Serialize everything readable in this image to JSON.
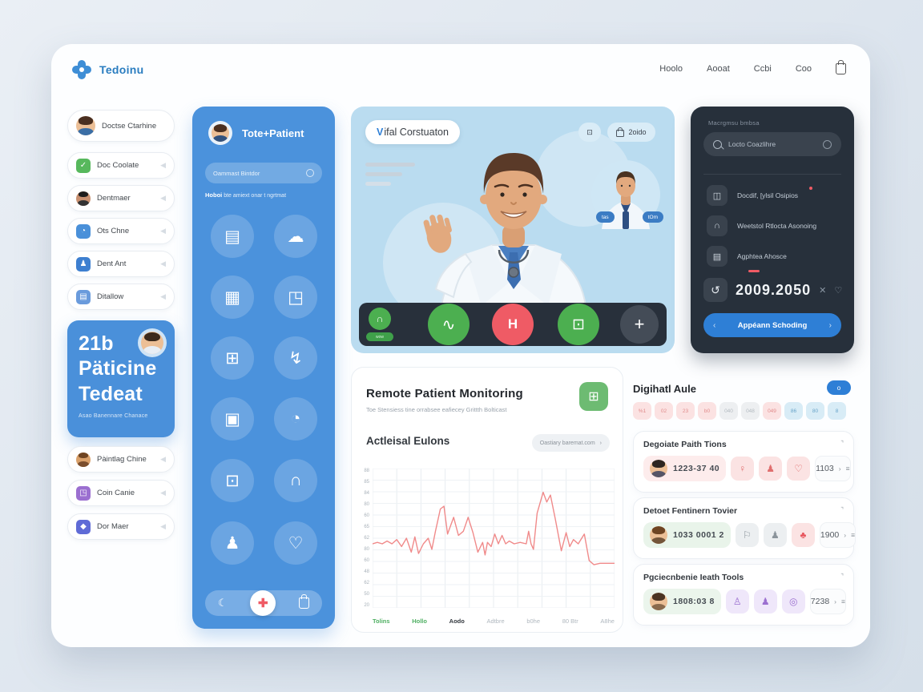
{
  "colors": {
    "accent": "#2e7fd6",
    "panel_blue": "#4b92dc",
    "red": "#ef5b65",
    "green": "#57b85c",
    "dark": "#27303b",
    "chart_line": "#f08a8a"
  },
  "app": {
    "logo": "Tedoinu"
  },
  "nav": {
    "items": [
      {
        "label": "Hoolo"
      },
      {
        "label": "Aooat"
      },
      {
        "label": "Ccbi"
      },
      {
        "label": "Coo"
      }
    ]
  },
  "sidebar": {
    "profile": {
      "label": "Doctse Ctarhine"
    },
    "items": [
      {
        "label": "Doc Coolate",
        "icon": "✓"
      },
      {
        "label": "Dentmaer",
        "icon": ""
      },
      {
        "label": "Ots Chne",
        "icon": "◔"
      },
      {
        "label": "Dent Ant",
        "icon": "♟"
      },
      {
        "label": "Ditallow",
        "icon": "▤"
      }
    ],
    "stat_card": {
      "value": "21b",
      "line1": "Päticine",
      "line2": "Tedeat",
      "caption": "Asao Banennare Chanace"
    },
    "items_bottom": [
      {
        "label": "Pàintlag Chine",
        "icon": ""
      },
      {
        "label": "Coin Canie",
        "icon": "◳"
      },
      {
        "label": "Dor Maer",
        "icon": "◆"
      }
    ]
  },
  "patient_panel": {
    "title": "Tote+Patient",
    "search_placeholder": "Oammast Bintdor",
    "note_bold": "Hoboi",
    "note_rest": " bte amiext onar t ngrtmat",
    "icons": [
      "▤",
      "☁",
      "▦",
      "◳",
      "⊞",
      "↯",
      "▣",
      "◔",
      "⊡",
      "∩",
      "♟",
      "♡"
    ],
    "footer": {
      "moon": "☾",
      "cross": "✚"
    }
  },
  "video": {
    "title_v": "V",
    "title_rest": "ifal Corstuaton",
    "badge_icon": "⊡",
    "audio_label": "2oido",
    "pip_tags": [
      "tas",
      "tOm"
    ],
    "mini_pill": "wow",
    "wave_btn": "∿",
    "end_btn": "H",
    "share_btn": "⊡",
    "add_btn": "+",
    "headset": "∩"
  },
  "dark_panel": {
    "heading": "Macrgmsu bmbsa",
    "search_placeholder": "Locto Coazlihre",
    "items": [
      {
        "label": "Docdif, [ylsil Osipios",
        "icon": "◫"
      },
      {
        "label": "Weetstol Rtlocta Asonoing",
        "icon": "∩"
      },
      {
        "label": "Agphtea Ahosce",
        "icon": "▤"
      }
    ],
    "timer": "2009.2050",
    "refresh": "↺",
    "expand": "✕",
    "heart": "♡",
    "cta": "Appéann Schoding"
  },
  "monitoring": {
    "title": "Remote Patient Monitoring",
    "subtitle": "Toe Stensiess tine orrabsee eafiecey Grittth Bolticast",
    "button_icon": "⊞",
    "section_title": "Actleisal Eulons",
    "pill_label": "Oastiary baremat.com",
    "pill_arrow": "›"
  },
  "chart_data": {
    "type": "line",
    "title": "Actleisal Eulons",
    "line_color": "#f08a8a",
    "grid": true,
    "yticks": [
      "88",
      "85",
      "84",
      "80",
      "60",
      "65",
      "62",
      "80",
      "60",
      "48",
      "62",
      "50",
      "20"
    ],
    "xlabels": [
      {
        "label": "Tolins",
        "theme": "green"
      },
      {
        "label": "Hollo",
        "theme": "green"
      },
      {
        "label": "Aodo",
        "theme": "dark"
      },
      {
        "label": "Adtbre",
        "theme": "gray"
      },
      {
        "label": "b0he",
        "theme": "gray"
      },
      {
        "label": "80 Btr",
        "theme": "gray"
      },
      {
        "label": "A8he",
        "theme": "gray"
      }
    ],
    "points": [
      [
        0,
        54
      ],
      [
        2,
        53
      ],
      [
        4,
        54
      ],
      [
        6,
        52
      ],
      [
        8,
        54
      ],
      [
        10,
        51
      ],
      [
        12,
        56
      ],
      [
        14,
        50
      ],
      [
        16,
        60
      ],
      [
        17.5,
        49
      ],
      [
        19,
        61
      ],
      [
        21,
        54
      ],
      [
        23,
        50
      ],
      [
        24.5,
        58
      ],
      [
        26,
        45
      ],
      [
        28,
        29
      ],
      [
        29.5,
        27
      ],
      [
        31,
        47
      ],
      [
        33.5,
        35
      ],
      [
        35.5,
        48
      ],
      [
        37.5,
        45
      ],
      [
        39.5,
        35
      ],
      [
        41.5,
        46
      ],
      [
        43.5,
        60
      ],
      [
        45.5,
        53
      ],
      [
        46.5,
        62
      ],
      [
        47.5,
        53
      ],
      [
        49,
        56
      ],
      [
        50.5,
        47
      ],
      [
        52,
        54
      ],
      [
        53.5,
        48
      ],
      [
        55,
        54
      ],
      [
        56.5,
        52
      ],
      [
        58.5,
        54
      ],
      [
        61,
        53
      ],
      [
        63.5,
        54
      ],
      [
        64.5,
        45
      ],
      [
        65.5,
        54
      ],
      [
        66.5,
        58
      ],
      [
        68,
        32
      ],
      [
        70.5,
        17
      ],
      [
        72,
        24
      ],
      [
        73.5,
        19
      ],
      [
        75.5,
        36
      ],
      [
        78,
        59
      ],
      [
        80,
        46
      ],
      [
        81.5,
        56
      ],
      [
        83,
        51
      ],
      [
        85,
        54
      ],
      [
        87.5,
        47
      ],
      [
        89.5,
        66
      ],
      [
        91.5,
        69
      ],
      [
        94,
        68
      ],
      [
        97,
        68
      ],
      [
        100,
        68
      ]
    ]
  },
  "digital": {
    "title": "Digihatl Aule",
    "button_label": "o",
    "chips": [
      {
        "label": "%1",
        "theme": "pink"
      },
      {
        "label": "02",
        "theme": "pink"
      },
      {
        "label": "23",
        "theme": "pink"
      },
      {
        "label": "b0",
        "theme": "pink"
      },
      {
        "label": "040",
        "theme": "gray"
      },
      {
        "label": "048",
        "theme": "gray"
      },
      {
        "label": "049",
        "theme": "pink"
      },
      {
        "label": "86",
        "theme": "blue"
      },
      {
        "label": "80",
        "theme": "blue"
      },
      {
        "label": "8",
        "theme": "blue"
      }
    ],
    "cards": [
      {
        "title": "Degoiate Paith Tions",
        "corner": "⌝",
        "phone": "1223-37 40",
        "icons": [
          "♀",
          "♟",
          "♡"
        ],
        "count": "1103",
        "chev": "›",
        "menu": "≡"
      },
      {
        "title": "Detoet Fentinern Tovier",
        "corner": "⌝",
        "phone": "1033 0001 2",
        "icons": [
          "⚐",
          "♟",
          "♣"
        ],
        "count": "1900",
        "chev": "›",
        "menu": "≡"
      },
      {
        "title": "Pgciecnbenie Ieath Tools",
        "corner": "⌝",
        "phone": "1808:03 8",
        "icons": [
          "♙",
          "♟",
          "◎"
        ],
        "count": "7238",
        "chev": "›",
        "menu": "≡"
      }
    ]
  }
}
